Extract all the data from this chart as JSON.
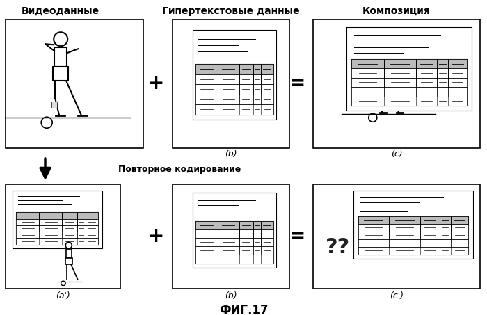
{
  "title": "ФИГ.17",
  "label_video": "Видеоданные",
  "label_hyper": "Гипертекстовые данные",
  "label_comp": "Композиция",
  "label_recode": "Повторное кодирование",
  "label_b": "(b)",
  "label_c": "(c)",
  "label_ap": "(a')",
  "label_bp": "(b)",
  "label_cp": "(c')",
  "bg_color": "#ffffff",
  "box_color": "#000000"
}
